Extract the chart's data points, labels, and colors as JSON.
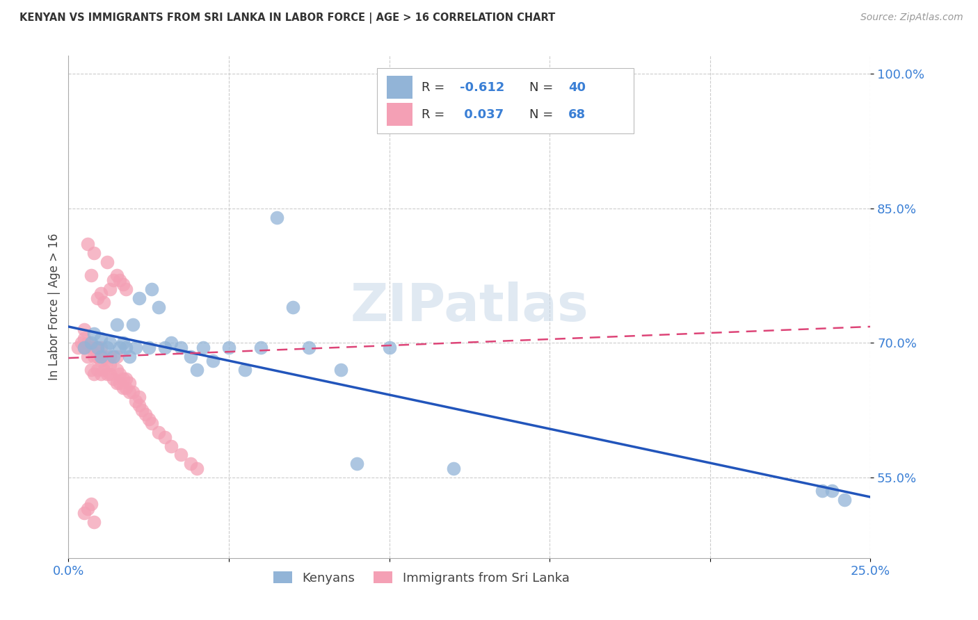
{
  "title": "KENYAN VS IMMIGRANTS FROM SRI LANKA IN LABOR FORCE | AGE > 16 CORRELATION CHART",
  "source": "Source: ZipAtlas.com",
  "ylabel": "In Labor Force | Age > 16",
  "xlim": [
    0.0,
    0.25
  ],
  "ylim": [
    0.46,
    1.02
  ],
  "yticks": [
    0.55,
    0.7,
    0.85,
    1.0
  ],
  "yticklabels": [
    "55.0%",
    "70.0%",
    "85.0%",
    "100.0%"
  ],
  "xticks": [
    0.0,
    0.05,
    0.1,
    0.15,
    0.2,
    0.25
  ],
  "xticklabels": [
    "0.0%",
    "",
    "",
    "",
    "",
    "25.0%"
  ],
  "blue_color": "#92b4d7",
  "pink_color": "#f4a0b5",
  "blue_line_color": "#2255bb",
  "pink_line_color": "#dd4477",
  "watermark": "ZIPatlas",
  "background_color": "#ffffff",
  "grid_color": "#cccccc",
  "blue_line_x0": 0.0,
  "blue_line_y0": 0.718,
  "blue_line_x1": 0.25,
  "blue_line_y1": 0.528,
  "pink_line_x0": 0.0,
  "pink_line_y0": 0.683,
  "pink_line_x1": 0.25,
  "pink_line_y1": 0.718,
  "blue_x": [
    0.005,
    0.007,
    0.008,
    0.009,
    0.01,
    0.01,
    0.012,
    0.013,
    0.014,
    0.015,
    0.016,
    0.017,
    0.018,
    0.019,
    0.02,
    0.021,
    0.022,
    0.025,
    0.026,
    0.028,
    0.03,
    0.032,
    0.035,
    0.038,
    0.04,
    0.042,
    0.045,
    0.05,
    0.055,
    0.06,
    0.065,
    0.07,
    0.075,
    0.085,
    0.09,
    0.1,
    0.12,
    0.235,
    0.238,
    0.242
  ],
  "blue_y": [
    0.695,
    0.7,
    0.71,
    0.695,
    0.685,
    0.705,
    0.695,
    0.7,
    0.685,
    0.72,
    0.695,
    0.7,
    0.695,
    0.685,
    0.72,
    0.695,
    0.75,
    0.695,
    0.76,
    0.74,
    0.695,
    0.7,
    0.695,
    0.685,
    0.67,
    0.695,
    0.68,
    0.695,
    0.67,
    0.695,
    0.84,
    0.74,
    0.695,
    0.67,
    0.565,
    0.695,
    0.56,
    0.535,
    0.535,
    0.525
  ],
  "pink_x": [
    0.003,
    0.004,
    0.005,
    0.005,
    0.005,
    0.006,
    0.006,
    0.007,
    0.007,
    0.008,
    0.008,
    0.008,
    0.009,
    0.009,
    0.009,
    0.01,
    0.01,
    0.01,
    0.011,
    0.011,
    0.012,
    0.012,
    0.013,
    0.013,
    0.013,
    0.014,
    0.015,
    0.015,
    0.015,
    0.016,
    0.016,
    0.017,
    0.017,
    0.018,
    0.018,
    0.019,
    0.019,
    0.02,
    0.021,
    0.022,
    0.022,
    0.023,
    0.024,
    0.025,
    0.026,
    0.028,
    0.03,
    0.032,
    0.035,
    0.038,
    0.04,
    0.012,
    0.008,
    0.006,
    0.007,
    0.009,
    0.01,
    0.011,
    0.013,
    0.014,
    0.015,
    0.016,
    0.017,
    0.018,
    0.007,
    0.006,
    0.005,
    0.008
  ],
  "pink_y": [
    0.695,
    0.7,
    0.695,
    0.705,
    0.715,
    0.685,
    0.7,
    0.67,
    0.695,
    0.665,
    0.685,
    0.695,
    0.67,
    0.685,
    0.695,
    0.665,
    0.68,
    0.695,
    0.67,
    0.685,
    0.665,
    0.68,
    0.665,
    0.675,
    0.685,
    0.66,
    0.655,
    0.67,
    0.685,
    0.655,
    0.665,
    0.65,
    0.66,
    0.65,
    0.66,
    0.645,
    0.655,
    0.645,
    0.635,
    0.63,
    0.64,
    0.625,
    0.62,
    0.615,
    0.61,
    0.6,
    0.595,
    0.585,
    0.575,
    0.565,
    0.56,
    0.79,
    0.8,
    0.81,
    0.775,
    0.75,
    0.755,
    0.745,
    0.76,
    0.77,
    0.775,
    0.77,
    0.765,
    0.76,
    0.52,
    0.515,
    0.51,
    0.5
  ]
}
